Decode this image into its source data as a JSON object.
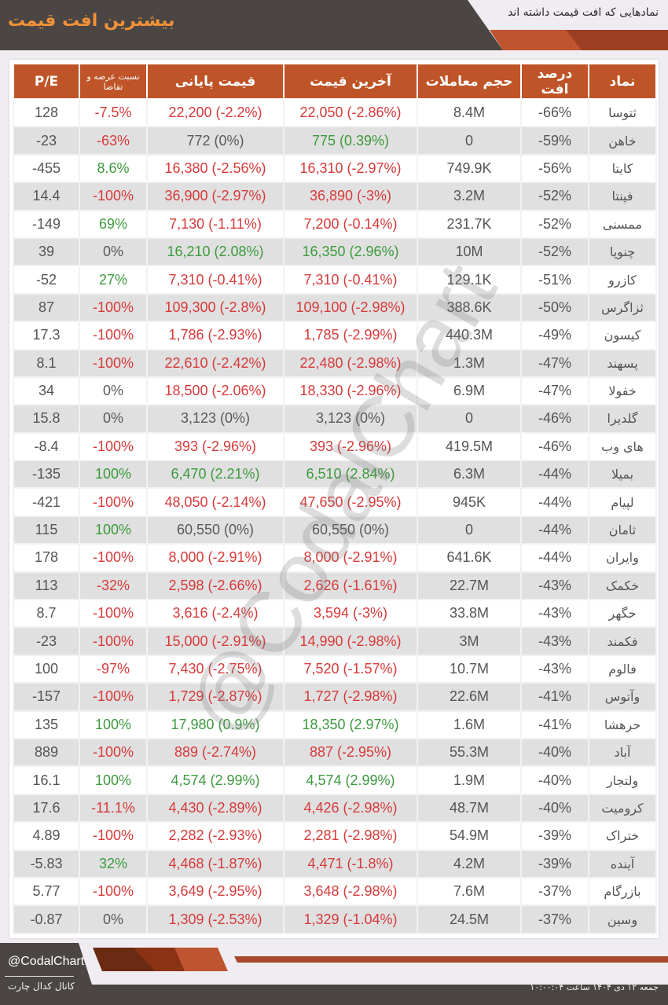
{
  "header": {
    "title": "بیشترین افت قیمت",
    "subtitle": "نمادهایی که افت قیمت داشته اند"
  },
  "colors": {
    "brand_orange": "#f39237",
    "header_bg": "#bf5428",
    "dark_bg": "#4b4644",
    "negative": "#d83a3a",
    "positive": "#3d9a3d",
    "neutral": "#5a5a5a"
  },
  "table": {
    "columns": {
      "pe": "P/E",
      "ratio": "نسبت عرضه و تقاضا",
      "closing": "قیمت پایانی",
      "last": "آخرین قیمت",
      "volume": "حجم معاملات",
      "drop": "درصد افت",
      "symbol": "نماد"
    },
    "rows": [
      {
        "symbol": "ثتوسا",
        "drop": "-66%",
        "volume": "8.4M",
        "last": "22,050 (-2.86%)",
        "last_c": "red",
        "closing": "22,200 (-2.2%)",
        "closing_c": "red",
        "ratio": "-7.5%",
        "ratio_c": "red",
        "pe": "128"
      },
      {
        "symbol": "خاهن",
        "drop": "-59%",
        "volume": "0",
        "last": "775 (0.39%)",
        "last_c": "green",
        "closing": "772 (0%)",
        "closing_c": "gray",
        "ratio": "-63%",
        "ratio_c": "red",
        "pe": "-23"
      },
      {
        "symbol": "کایتا",
        "drop": "-56%",
        "volume": "749.9K",
        "last": "16,310 (-2.97%)",
        "last_c": "red",
        "closing": "16,380 (-2.56%)",
        "closing_c": "red",
        "ratio": "8.6%",
        "ratio_c": "green",
        "pe": "-455"
      },
      {
        "symbol": "فپنتا",
        "drop": "-52%",
        "volume": "3.2M",
        "last": "36,890 (-3%)",
        "last_c": "red",
        "closing": "36,900 (-2.97%)",
        "closing_c": "red",
        "ratio": "-100%",
        "ratio_c": "red",
        "pe": "14.4"
      },
      {
        "symbol": "ممسنی",
        "drop": "-52%",
        "volume": "231.7K",
        "last": "7,200 (-0.14%)",
        "last_c": "red",
        "closing": "7,130 (-1.11%)",
        "closing_c": "red",
        "ratio": "69%",
        "ratio_c": "green",
        "pe": "-149"
      },
      {
        "symbol": "چنوپا",
        "drop": "-52%",
        "volume": "10M",
        "last": "16,350 (2.96%)",
        "last_c": "green",
        "closing": "16,210 (2.08%)",
        "closing_c": "green",
        "ratio": "0%",
        "ratio_c": "gray",
        "pe": "39"
      },
      {
        "symbol": "کازرو",
        "drop": "-51%",
        "volume": "129.1K",
        "last": "7,310 (-0.41%)",
        "last_c": "red",
        "closing": "7,310 (-0.41%)",
        "closing_c": "red",
        "ratio": "27%",
        "ratio_c": "green",
        "pe": "-52"
      },
      {
        "symbol": "ثزاگرس",
        "drop": "-50%",
        "volume": "388.6K",
        "last": "109,100 (-2.98%)",
        "last_c": "red",
        "closing": "109,300 (-2.8%)",
        "closing_c": "red",
        "ratio": "-100%",
        "ratio_c": "red",
        "pe": "87"
      },
      {
        "symbol": "کیسون",
        "drop": "-49%",
        "volume": "440.3M",
        "last": "1,785 (-2.99%)",
        "last_c": "red",
        "closing": "1,786 (-2.93%)",
        "closing_c": "red",
        "ratio": "-100%",
        "ratio_c": "red",
        "pe": "17.3"
      },
      {
        "symbol": "پسهند",
        "drop": "-47%",
        "volume": "1.3M",
        "last": "22,480 (-2.98%)",
        "last_c": "red",
        "closing": "22,610 (-2.42%)",
        "closing_c": "red",
        "ratio": "-100%",
        "ratio_c": "red",
        "pe": "8.1"
      },
      {
        "symbol": "خفولا",
        "drop": "-47%",
        "volume": "6.9M",
        "last": "18,330 (-2.96%)",
        "last_c": "red",
        "closing": "18,500 (-2.06%)",
        "closing_c": "red",
        "ratio": "0%",
        "ratio_c": "gray",
        "pe": "34"
      },
      {
        "symbol": "گلدیرا",
        "drop": "-46%",
        "volume": "0",
        "last": "3,123 (0%)",
        "last_c": "gray",
        "closing": "3,123 (0%)",
        "closing_c": "gray",
        "ratio": "0%",
        "ratio_c": "gray",
        "pe": "15.8"
      },
      {
        "symbol": "های وب",
        "drop": "-46%",
        "volume": "419.5M",
        "last": "393 (-2.96%)",
        "last_c": "red",
        "closing": "393 (-2.96%)",
        "closing_c": "red",
        "ratio": "-100%",
        "ratio_c": "red",
        "pe": "-8.4"
      },
      {
        "symbol": "بمیلا",
        "drop": "-44%",
        "volume": "6.3M",
        "last": "6,510 (2.84%)",
        "last_c": "green",
        "closing": "6,470 (2.21%)",
        "closing_c": "green",
        "ratio": "100%",
        "ratio_c": "green",
        "pe": "-135"
      },
      {
        "symbol": "لپیام",
        "drop": "-44%",
        "volume": "945K",
        "last": "47,650 (-2.95%)",
        "last_c": "red",
        "closing": "48,050 (-2.14%)",
        "closing_c": "red",
        "ratio": "-100%",
        "ratio_c": "red",
        "pe": "-421"
      },
      {
        "symbol": "ثامان",
        "drop": "-44%",
        "volume": "0",
        "last": "60,550 (0%)",
        "last_c": "gray",
        "closing": "60,550 (0%)",
        "closing_c": "gray",
        "ratio": "100%",
        "ratio_c": "green",
        "pe": "115"
      },
      {
        "symbol": "وایران",
        "drop": "-44%",
        "volume": "641.6K",
        "last": "8,000 (-2.91%)",
        "last_c": "red",
        "closing": "8,000 (-2.91%)",
        "closing_c": "red",
        "ratio": "-100%",
        "ratio_c": "red",
        "pe": "178"
      },
      {
        "symbol": "خکمک",
        "drop": "-43%",
        "volume": "22.7M",
        "last": "2,626 (-1.61%)",
        "last_c": "red",
        "closing": "2,598 (-2.66%)",
        "closing_c": "red",
        "ratio": "-32%",
        "ratio_c": "red",
        "pe": "113"
      },
      {
        "symbol": "حگهر",
        "drop": "-43%",
        "volume": "33.8M",
        "last": "3,594 (-3%)",
        "last_c": "red",
        "closing": "3,616 (-2.4%)",
        "closing_c": "red",
        "ratio": "-100%",
        "ratio_c": "red",
        "pe": "8.7"
      },
      {
        "symbol": "فکمند",
        "drop": "-43%",
        "volume": "3M",
        "last": "14,990 (-2.98%)",
        "last_c": "red",
        "closing": "15,000 (-2.91%)",
        "closing_c": "red",
        "ratio": "-100%",
        "ratio_c": "red",
        "pe": "-23"
      },
      {
        "symbol": "فالوم",
        "drop": "-43%",
        "volume": "10.7M",
        "last": "7,520 (-1.57%)",
        "last_c": "red",
        "closing": "7,430 (-2.75%)",
        "closing_c": "red",
        "ratio": "-97%",
        "ratio_c": "red",
        "pe": "100"
      },
      {
        "symbol": "وآتوس",
        "drop": "-41%",
        "volume": "22.6M",
        "last": "1,727 (-2.98%)",
        "last_c": "red",
        "closing": "1,729 (-2.87%)",
        "closing_c": "red",
        "ratio": "-100%",
        "ratio_c": "red",
        "pe": "-157"
      },
      {
        "symbol": "حرهشا",
        "drop": "-41%",
        "volume": "1.6M",
        "last": "18,350 (2.97%)",
        "last_c": "green",
        "closing": "17,980 (0.9%)",
        "closing_c": "green",
        "ratio": "100%",
        "ratio_c": "green",
        "pe": "135"
      },
      {
        "symbol": "آباد",
        "drop": "-40%",
        "volume": "55.3M",
        "last": "887 (-2.95%)",
        "last_c": "red",
        "closing": "889 (-2.74%)",
        "closing_c": "red",
        "ratio": "-100%",
        "ratio_c": "red",
        "pe": "889"
      },
      {
        "symbol": "ولتجار",
        "drop": "-40%",
        "volume": "1.9M",
        "last": "4,574 (2.99%)",
        "last_c": "green",
        "closing": "4,574 (2.99%)",
        "closing_c": "green",
        "ratio": "100%",
        "ratio_c": "green",
        "pe": "16.1"
      },
      {
        "symbol": "کرومیت",
        "drop": "-40%",
        "volume": "48.7M",
        "last": "4,426 (-2.98%)",
        "last_c": "red",
        "closing": "4,430 (-2.89%)",
        "closing_c": "red",
        "ratio": "-11.1%",
        "ratio_c": "red",
        "pe": "17.6"
      },
      {
        "symbol": "ختراک",
        "drop": "-39%",
        "volume": "54.9M",
        "last": "2,281 (-2.98%)",
        "last_c": "red",
        "closing": "2,282 (-2.93%)",
        "closing_c": "red",
        "ratio": "-100%",
        "ratio_c": "red",
        "pe": "4.89"
      },
      {
        "symbol": "آینده",
        "drop": "-39%",
        "volume": "4.2M",
        "last": "4,471 (-1.8%)",
        "last_c": "red",
        "closing": "4,468 (-1.87%)",
        "closing_c": "red",
        "ratio": "32%",
        "ratio_c": "green",
        "pe": "-5.83"
      },
      {
        "symbol": "بازرگام",
        "drop": "-37%",
        "volume": "7.6M",
        "last": "3,648 (-2.98%)",
        "last_c": "red",
        "closing": "3,649 (-2.95%)",
        "closing_c": "red",
        "ratio": "-100%",
        "ratio_c": "red",
        "pe": "5.77"
      },
      {
        "symbol": "وسین",
        "drop": "-37%",
        "volume": "24.5M",
        "last": "1,329 (-1.04%)",
        "last_c": "red",
        "closing": "1,309 (-2.53%)",
        "closing_c": "red",
        "ratio": "0%",
        "ratio_c": "gray",
        "pe": "-0.87"
      }
    ]
  },
  "watermark": "@CodalChart",
  "footer": {
    "handle": "@CodalChart",
    "channel": "کانال کدال چارت",
    "datetime": "جمعه ۱۲ دی ۱۴۰۴ ساعت ۱۰:۰۰:۰۴"
  }
}
